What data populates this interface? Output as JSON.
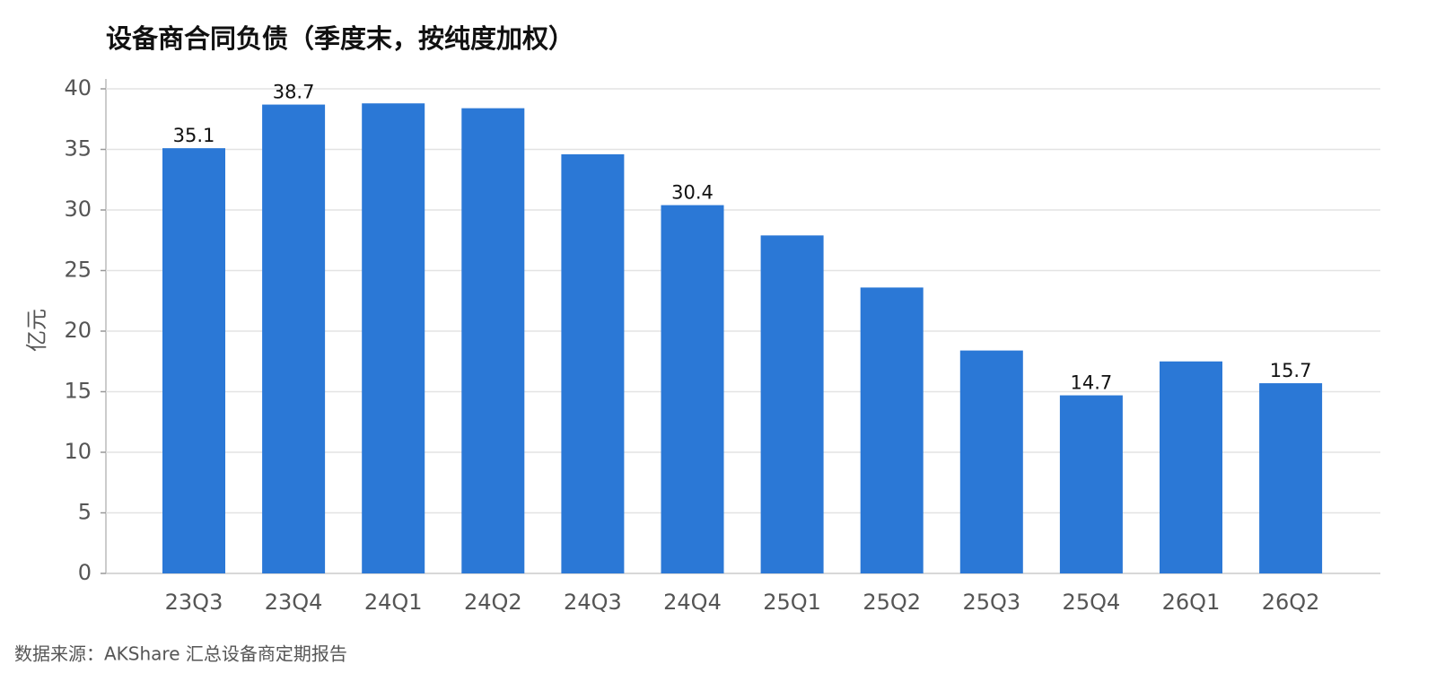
{
  "chart_data": {
    "type": "bar",
    "title": "设备商合同负债（季度末，按纯度加权）",
    "ylabel": "亿元",
    "source": "数据来源：AKShare 汇总设备商定期报告",
    "categories": [
      "23Q3",
      "23Q4",
      "24Q1",
      "24Q2",
      "24Q3",
      "24Q4",
      "25Q1",
      "25Q2",
      "25Q3",
      "25Q4",
      "26Q1",
      "26Q2"
    ],
    "values": [
      35.1,
      38.7,
      38.8,
      38.4,
      34.6,
      30.4,
      27.9,
      23.6,
      18.4,
      14.7,
      17.5,
      15.7
    ],
    "value_labels": [
      "35.1",
      "38.7",
      null,
      null,
      null,
      "30.4",
      null,
      null,
      null,
      "14.7",
      null,
      "15.7"
    ],
    "color": "#2b78d6",
    "ylim": [
      0,
      40
    ],
    "yticks": [
      0,
      5,
      10,
      15,
      20,
      25,
      30,
      35,
      40
    ],
    "grid": true
  }
}
